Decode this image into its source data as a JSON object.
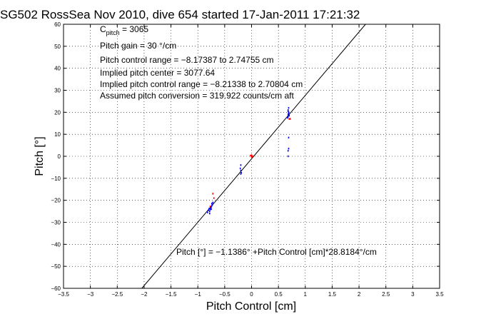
{
  "chart_data": {
    "type": "scatter",
    "title": "SG502 RossSea Nov 2010, dive 654 started 17-Jan-2011 17:21:32",
    "xlabel": "Pitch Control [cm]",
    "ylabel": "Pitch [°]",
    "xlim": [
      -3.5,
      3.5
    ],
    "ylim": [
      -60,
      60
    ],
    "xticks": [
      -3.5,
      -3,
      -2.5,
      -2,
      -1.5,
      -1,
      -0.5,
      0,
      0.5,
      1,
      1.5,
      2,
      2.5,
      3,
      3.5
    ],
    "yticks": [
      -60,
      -50,
      -40,
      -30,
      -20,
      -10,
      0,
      10,
      20,
      30,
      40,
      50,
      60
    ],
    "xtick_labels": [
      "−3.5",
      "−3",
      "−2.5",
      "−2",
      "−1.5",
      "−1",
      "−0.5",
      "0",
      "0.5",
      "1",
      "1.5",
      "2",
      "2.5",
      "3",
      "3.5"
    ],
    "ytick_labels": [
      "−60",
      "−50",
      "−40",
      "−30",
      "−20",
      "−10",
      "0",
      "10",
      "20",
      "30",
      "40",
      "50",
      "60"
    ],
    "grid": true,
    "annotations": {
      "c_pitch_main": "C",
      "c_pitch_sub": "pitch",
      "c_pitch_value": " = 3065",
      "pitch_gain": "Pitch gain = 30 °/cm",
      "control_range": "Pitch control range = −8.17387 to 2.74755 cm",
      "implied_center": "Implied pitch center = 3077.64",
      "implied_range": "Implied pitch control range = −8.21338 to 2.70804 cm",
      "conversion": "Assumed pitch conversion = 319.922 counts/cm aft",
      "fit_equation": "Pitch [°] = −1.1386° +Pitch Control [cm]*28.8184°/cm"
    },
    "fit_line": {
      "intercept": -1.1386,
      "slope": 28.8184,
      "color": "#000000"
    },
    "series": [
      {
        "color": "#0000ff",
        "points": [
          [
            -0.8,
            -24.5
          ],
          [
            -0.78,
            -25.0
          ],
          [
            -0.79,
            -23.8
          ],
          [
            -0.77,
            -24.2
          ],
          [
            -0.76,
            -23.5
          ],
          [
            -0.75,
            -23.0
          ],
          [
            -0.74,
            -22.5
          ],
          [
            -0.74,
            -21.5
          ],
          [
            -0.73,
            -22.0
          ],
          [
            -0.75,
            -24.0
          ],
          [
            -0.78,
            -26.0
          ],
          [
            -0.72,
            -21.0
          ],
          [
            -0.82,
            -25.5
          ],
          [
            -0.2,
            -8.0
          ],
          [
            -0.2,
            -6.5
          ],
          [
            -0.21,
            -5.5
          ],
          [
            -0.19,
            -7.5
          ],
          [
            -0.2,
            -4.0
          ],
          [
            0.68,
            18.0
          ],
          [
            0.68,
            19.0
          ],
          [
            0.69,
            20.0
          ],
          [
            0.68,
            21.0
          ],
          [
            0.69,
            22.0
          ],
          [
            0.7,
            18.5
          ],
          [
            0.67,
            17.5
          ],
          [
            0.69,
            19.5
          ],
          [
            0.68,
            20.5
          ],
          [
            0.69,
            8.5
          ],
          [
            0.69,
            3.5
          ],
          [
            0.68,
            2.5
          ],
          [
            0.68,
            0.0
          ]
        ]
      },
      {
        "color": "#ff0000",
        "points": [
          [
            -0.7,
            -19.0
          ],
          [
            -0.77,
            -22.8
          ],
          [
            -0.72,
            -17.0
          ],
          [
            0.0,
            0.5
          ],
          [
            0.02,
            0.0
          ],
          [
            -0.02,
            0.3
          ],
          [
            0.0,
            -0.3
          ],
          [
            0.7,
            17.0
          ],
          [
            0.72,
            17.0
          ]
        ]
      }
    ]
  }
}
